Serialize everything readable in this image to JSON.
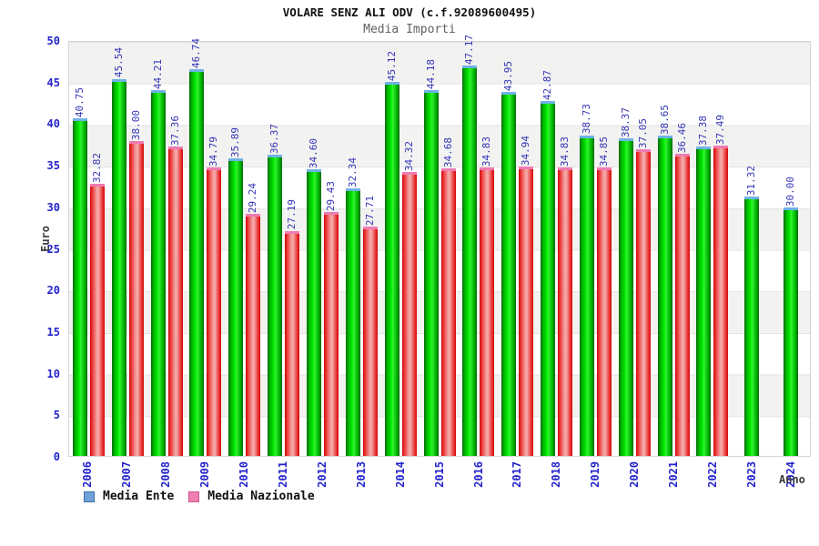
{
  "header": {
    "title": "VOLARE SENZ ALI ODV (c.f.92089600495)",
    "subtitle": "Media Importi"
  },
  "chart_data": {
    "type": "bar",
    "title": "VOLARE SENZ ALI ODV (c.f.92089600495)",
    "subtitle": "Media Importi",
    "xlabel": "Anno",
    "ylabel": "Euro",
    "ylim": [
      0,
      50
    ],
    "yticks": [
      0,
      5,
      10,
      15,
      20,
      25,
      30,
      35,
      40,
      45,
      50
    ],
    "grid": "alternating-horizontal-bands",
    "legend_position": "bottom-left",
    "categories": [
      "2006",
      "2007",
      "2008",
      "2009",
      "2010",
      "2011",
      "2012",
      "2013",
      "2014",
      "2015",
      "2016",
      "2017",
      "2018",
      "2019",
      "2020",
      "2021",
      "2022",
      "2023",
      "2024"
    ],
    "series": [
      {
        "name": "Media Ente",
        "legend_color": "#6fa3d8",
        "bar_edge_color": "#086808",
        "bar_center_color": "#00ee00",
        "cap_color": "#70b2e6",
        "values": [
          40.75,
          45.54,
          44.21,
          46.74,
          35.89,
          36.37,
          34.6,
          32.34,
          45.12,
          44.18,
          47.17,
          43.95,
          42.87,
          38.73,
          38.37,
          38.65,
          37.38,
          31.32,
          30.0
        ]
      },
      {
        "name": "Media Nazionale",
        "legend_color": "#ee7fb2",
        "bar_edge_color": "#cf0707",
        "bar_center_color": "#f3a6a6",
        "cap_color": "#ee7bb2",
        "values": [
          32.82,
          38.0,
          37.36,
          34.79,
          29.24,
          27.19,
          29.43,
          27.71,
          34.32,
          34.68,
          34.83,
          34.94,
          34.83,
          34.85,
          37.05,
          36.46,
          37.49,
          null,
          null
        ]
      }
    ]
  },
  "colors": {
    "axis_text_blue": "#2323cc",
    "value_label_blue": "#3434b8",
    "band_gray": "#f2f2f1",
    "band_white": "#ffffff",
    "plot_border": "#d6d6d6",
    "title_black": "#111111",
    "subtitle_gray": "#606060",
    "axis_title_gray": "#3c3c3c"
  }
}
